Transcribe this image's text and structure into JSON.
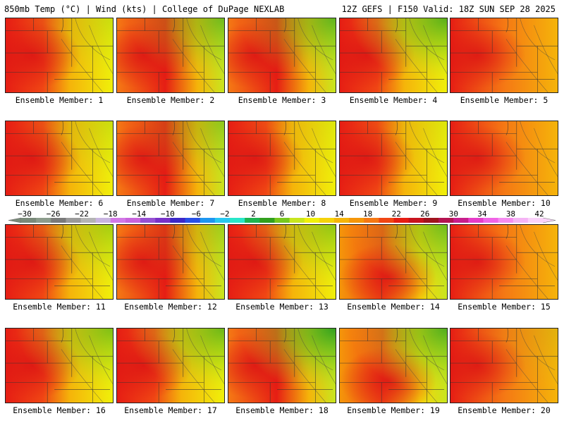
{
  "header": {
    "left": "850mb Temp (°C) | Wind (kts) | College of DuPage NEXLAB",
    "right": "12Z GEFS | F150 Valid: 18Z SUN SEP 28 2025"
  },
  "member_label_prefix": "Ensemble Member:",
  "members": [
    {
      "number": "1",
      "style": "hot-west",
      "green_ne": 0.2
    },
    {
      "number": "2",
      "style": "hot-center",
      "green_ne": 0.6
    },
    {
      "number": "3",
      "style": "hot-center",
      "green_ne": 0.7
    },
    {
      "number": "4",
      "style": "hot-west",
      "green_ne": 0.8
    },
    {
      "number": "5",
      "style": "hot-all",
      "green_ne": 0.0
    },
    {
      "number": "6",
      "style": "hot-west",
      "green_ne": 0.2
    },
    {
      "number": "7",
      "style": "hot-center",
      "green_ne": 0.4
    },
    {
      "number": "8",
      "style": "hot-west",
      "green_ne": 0.1
    },
    {
      "number": "9",
      "style": "hot-west",
      "green_ne": 0.1
    },
    {
      "number": "10",
      "style": "hot-all",
      "green_ne": 0.0
    },
    {
      "number": "11",
      "style": "hot-west",
      "green_ne": 0.4
    },
    {
      "number": "12",
      "style": "hot-center",
      "green_ne": 0.3
    },
    {
      "number": "13",
      "style": "hot-west",
      "green_ne": 0.5
    },
    {
      "number": "14",
      "style": "hot-south",
      "green_ne": 0.6
    },
    {
      "number": "15",
      "style": "hot-all",
      "green_ne": 0.0
    },
    {
      "number": "16",
      "style": "hot-west",
      "green_ne": 0.6
    },
    {
      "number": "17",
      "style": "hot-west",
      "green_ne": 0.7
    },
    {
      "number": "18",
      "style": "hot-center",
      "green_ne": 1.0
    },
    {
      "number": "19",
      "style": "hot-south",
      "green_ne": 0.8
    },
    {
      "number": "20",
      "style": "hot-all",
      "green_ne": 0.1
    }
  ],
  "colorbar": {
    "ticks": [
      "−30",
      "−26",
      "−22",
      "−18",
      "−14",
      "−10",
      "−6",
      "−2",
      "2",
      "6",
      "10",
      "14",
      "18",
      "22",
      "26",
      "30",
      "34",
      "38",
      "42"
    ],
    "colors": [
      "#7a8a7a",
      "#8c9c8c",
      "#7a7a7a",
      "#9a9a9a",
      "#b4b4b4",
      "#c8b4e0",
      "#d278e6",
      "#c864dc",
      "#9650d2",
      "#7832c8",
      "#3c28c8",
      "#2850e6",
      "#1e96f0",
      "#28c8f0",
      "#28e6c8",
      "#1eb450",
      "#32a01e",
      "#78c81e",
      "#c8e61e",
      "#f0f00a",
      "#f5d20a",
      "#f5b40a",
      "#f5960a",
      "#f57814",
      "#f04614",
      "#e61e14",
      "#c8141e",
      "#a0141e",
      "#b41450",
      "#c81e8c",
      "#e63cc8",
      "#f064e6",
      "#f58cf0",
      "#f5b4f5",
      "#fad2fa"
    ]
  }
}
